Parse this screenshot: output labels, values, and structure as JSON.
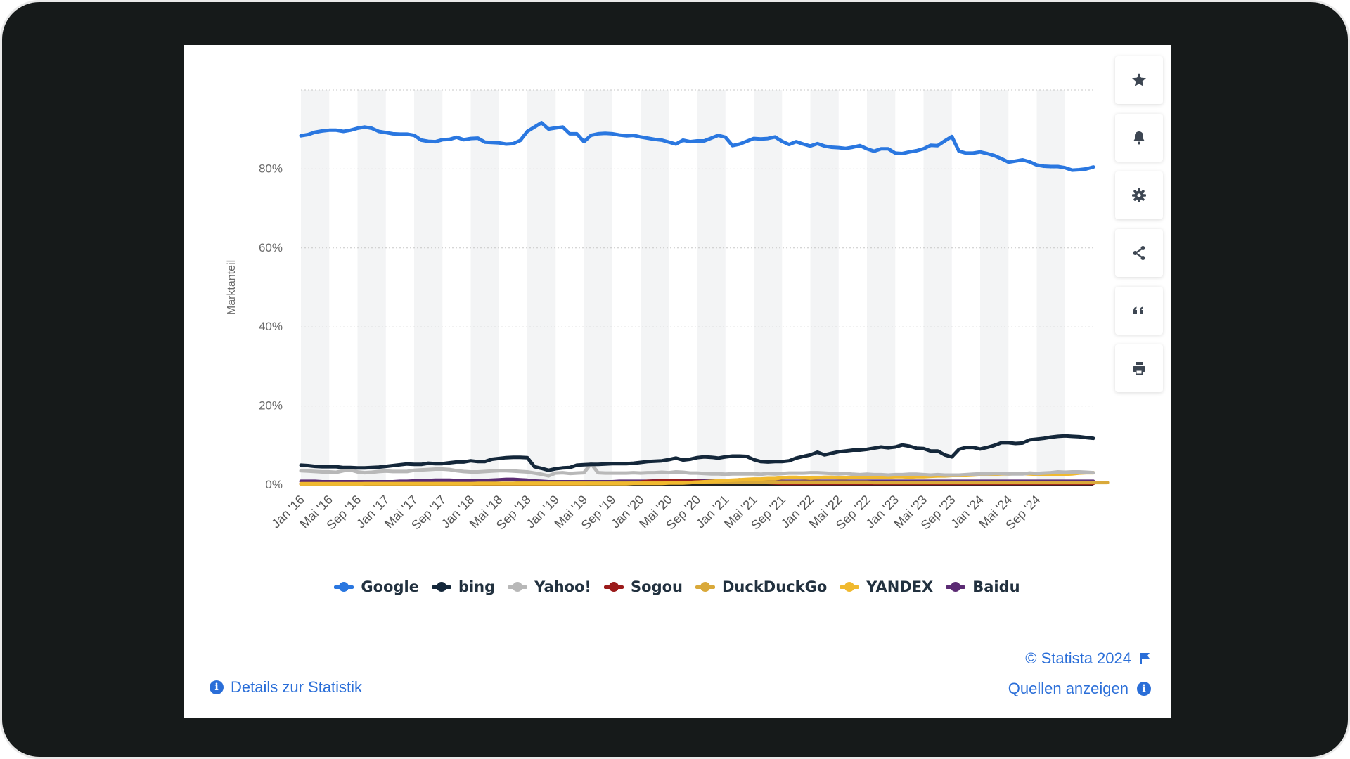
{
  "ui": {
    "details_label": "Details zur Statistik",
    "credit_label": "© Statista 2024",
    "sources_label": "Quellen anzeigen",
    "toolbar": [
      {
        "name": "favorite-button",
        "icon": "star-icon"
      },
      {
        "name": "notification-button",
        "icon": "bell-icon"
      },
      {
        "name": "settings-button",
        "icon": "gear-icon"
      },
      {
        "name": "share-button",
        "icon": "share-icon"
      },
      {
        "name": "cite-button",
        "icon": "quote-icon"
      },
      {
        "name": "print-button",
        "icon": "printer-icon"
      }
    ]
  },
  "chart_data": {
    "type": "line",
    "title": "",
    "xlabel": "",
    "ylabel": "Marktanteil",
    "ylim": [
      0,
      100
    ],
    "y_ticks": [
      0,
      20,
      40,
      60,
      80
    ],
    "y_tick_labels": [
      "0%",
      "20%",
      "40%",
      "60%",
      "80%"
    ],
    "grid": true,
    "x_tick_labels": [
      "Jan '16",
      "Mai '16",
      "Sep '16",
      "Jan '17",
      "Mai '17",
      "Sep '17",
      "Jan '18",
      "Mai '18",
      "Sep '18",
      "Jan '19",
      "Mai '19",
      "Sep '19",
      "Jan '20",
      "Mai '20",
      "Sep '20",
      "Jan '21",
      "Mai '21",
      "Sep '21",
      "Jan '22",
      "Mai '22",
      "Sep '22",
      "Jan '23",
      "Mai '23",
      "Sep '23",
      "Jan '24",
      "Mai '24",
      "Sep '24"
    ],
    "legend_position": "bottom",
    "x_start": "Jan '16",
    "x_end": "Nov '24",
    "series": [
      {
        "name": "Google",
        "color": "#2a77e0",
        "values": [
          88.4,
          88.7,
          89.3,
          89.6,
          89.8,
          89.8,
          89.5,
          89.8,
          90.3,
          90.6,
          90.3,
          89.5,
          89.2,
          88.9,
          88.8,
          88.8,
          88.5,
          87.3,
          87.0,
          86.9,
          87.4,
          87.5,
          88.0,
          87.4,
          87.7,
          87.8,
          86.8,
          86.7,
          86.6,
          86.3,
          86.4,
          87.2,
          89.5,
          90.6,
          91.7,
          90.1,
          90.4,
          90.6,
          88.9,
          88.9,
          86.9,
          88.5,
          88.9,
          89.0,
          88.9,
          88.6,
          88.4,
          88.5,
          88.1,
          87.8,
          87.5,
          87.3,
          86.8,
          86.3,
          87.3,
          86.9,
          87.1,
          87.1,
          87.8,
          88.5,
          88.0,
          85.9,
          86.3,
          87.0,
          87.7,
          87.6,
          87.7,
          88.1,
          87.0,
          86.2,
          86.9,
          86.3,
          85.8,
          86.4,
          85.8,
          85.5,
          85.4,
          85.2,
          85.5,
          85.9,
          85.1,
          84.5,
          85.1,
          85.1,
          84.0,
          83.9,
          84.3,
          84.6,
          85.1,
          86.0,
          85.9,
          87.1,
          88.2,
          84.5,
          84.0,
          84.0,
          84.3,
          83.9,
          83.4,
          82.6,
          81.7,
          82.0,
          82.3,
          81.8,
          81.0,
          80.7,
          80.6,
          80.6,
          80.3,
          79.7,
          79.8,
          80.0,
          80.5
        ]
      },
      {
        "name": "bing",
        "color": "#14273a",
        "values": [
          5.0,
          4.9,
          4.7,
          4.6,
          4.6,
          4.6,
          4.4,
          4.4,
          4.3,
          4.3,
          4.4,
          4.5,
          4.7,
          4.9,
          5.1,
          5.3,
          5.2,
          5.2,
          5.5,
          5.4,
          5.4,
          5.6,
          5.8,
          5.8,
          6.1,
          5.9,
          5.9,
          6.5,
          6.7,
          6.9,
          7.0,
          7.0,
          6.9,
          4.6,
          4.2,
          3.7,
          4.1,
          4.3,
          4.4,
          5.0,
          5.1,
          5.2,
          5.2,
          5.3,
          5.4,
          5.4,
          5.4,
          5.5,
          5.7,
          5.9,
          6.0,
          6.1,
          6.4,
          6.8,
          6.3,
          6.5,
          6.9,
          7.1,
          7.0,
          6.8,
          7.1,
          7.3,
          7.3,
          7.2,
          6.4,
          5.9,
          5.8,
          5.9,
          5.9,
          6.1,
          6.8,
          7.2,
          7.6,
          8.3,
          7.6,
          8.0,
          8.4,
          8.6,
          8.8,
          8.8,
          9.0,
          9.3,
          9.6,
          9.4,
          9.6,
          10.1,
          9.8,
          9.3,
          9.2,
          8.6,
          8.6,
          7.6,
          7.1,
          9.0,
          9.5,
          9.5,
          9.1,
          9.5,
          10.0,
          10.7,
          10.7,
          10.5,
          10.6,
          11.4,
          11.6,
          11.8,
          12.1,
          12.3,
          12.4,
          12.3,
          12.2,
          12.0,
          11.8
        ]
      },
      {
        "name": "Yahoo!",
        "color": "#b8b8b8",
        "values": [
          3.6,
          3.5,
          3.4,
          3.3,
          3.3,
          3.2,
          3.6,
          3.8,
          3.3,
          3.1,
          3.2,
          3.4,
          3.5,
          3.4,
          3.4,
          3.4,
          3.7,
          3.8,
          3.9,
          4.0,
          4.0,
          3.9,
          3.6,
          3.4,
          3.3,
          3.3,
          3.4,
          3.5,
          3.6,
          3.6,
          3.5,
          3.4,
          3.3,
          3.0,
          2.7,
          2.3,
          3.0,
          3.1,
          2.9,
          3.0,
          3.1,
          5.4,
          3.1,
          3.0,
          3.0,
          3.0,
          3.0,
          3.1,
          3.0,
          3.1,
          3.1,
          3.2,
          3.1,
          3.3,
          3.2,
          3.0,
          3.0,
          2.9,
          2.8,
          2.8,
          2.7,
          2.8,
          2.8,
          2.8,
          2.8,
          2.7,
          2.9,
          2.8,
          2.9,
          3.0,
          3.0,
          3.0,
          3.1,
          3.1,
          3.0,
          2.9,
          2.8,
          2.9,
          2.7,
          2.6,
          2.7,
          2.6,
          2.6,
          2.5,
          2.6,
          2.6,
          2.7,
          2.7,
          2.6,
          2.5,
          2.6,
          2.5,
          2.5,
          2.5,
          2.6,
          2.7,
          2.8,
          2.8,
          2.9,
          2.9,
          2.8,
          2.8,
          2.8,
          3.0,
          2.9,
          3.0,
          3.1,
          3.3,
          3.2,
          3.3,
          3.3,
          3.2,
          3.1
        ]
      },
      {
        "name": "Sogou",
        "color": "#9b1b1b",
        "values": [
          0.3,
          0.3,
          0.3,
          0.3,
          0.3,
          0.3,
          0.3,
          0.3,
          0.3,
          0.3,
          0.3,
          0.3,
          0.3,
          0.3,
          0.3,
          0.3,
          0.3,
          0.3,
          0.3,
          0.3,
          0.3,
          0.3,
          0.3,
          0.3,
          0.3,
          0.3,
          0.3,
          0.3,
          0.3,
          0.3,
          0.3,
          0.3,
          0.3,
          0.3,
          0.3,
          0.3,
          0.3,
          0.3,
          0.3,
          0.3,
          0.3,
          0.4,
          0.4,
          0.5,
          0.5,
          0.5,
          0.6,
          0.6,
          0.7,
          0.9,
          0.9,
          1.0,
          1.1,
          1.0,
          0.9,
          0.9,
          0.9,
          0.8,
          0.8,
          0.8,
          0.8,
          1.1,
          1.3,
          1.0,
          0.8,
          0.7,
          0.6,
          0.5,
          0.4,
          0.4,
          0.4,
          0.4,
          0.4,
          0.4,
          0.4,
          0.4,
          0.4,
          0.4,
          0.4,
          0.4,
          0.4,
          0.4,
          0.4,
          0.4,
          0.4,
          0.4,
          0.4,
          0.4,
          0.4,
          0.4,
          0.4,
          0.4,
          0.4,
          0.4,
          0.4,
          0.4,
          0.4,
          0.4,
          0.4,
          0.4,
          0.4,
          0.4,
          0.4,
          0.4,
          0.4,
          0.4,
          0.4,
          0.4,
          0.4,
          0.4,
          0.4,
          0.4,
          0.4
        ]
      },
      {
        "name": "DuckDuckGo",
        "color": "#d9a93a",
        "values": [
          0.2,
          0.2,
          0.2,
          0.2,
          0.2,
          0.2,
          0.2,
          0.2,
          0.2,
          0.3,
          0.3,
          0.3,
          0.3,
          0.3,
          0.3,
          0.3,
          0.3,
          0.3,
          0.3,
          0.3,
          0.3,
          0.3,
          0.3,
          0.3,
          0.3,
          0.4,
          0.4,
          0.4,
          0.4,
          0.4,
          0.4,
          0.5,
          0.5,
          0.5,
          0.5,
          0.5,
          0.5,
          0.5,
          0.5,
          0.5,
          0.5,
          0.5,
          0.5,
          0.5,
          0.5,
          0.6,
          0.6,
          0.6,
          0.6,
          0.6,
          0.6,
          0.6,
          0.6,
          0.6,
          0.6,
          0.6,
          0.7,
          0.7,
          0.7,
          0.7,
          0.7,
          0.7,
          0.7,
          0.7,
          0.7,
          0.7,
          0.7,
          0.7,
          0.7,
          0.7,
          0.7,
          0.7,
          0.7,
          0.7,
          0.7,
          0.7,
          0.7,
          0.7,
          0.7,
          0.7,
          0.7,
          0.6,
          0.6,
          0.6,
          0.6,
          0.6,
          0.6,
          0.6,
          0.6,
          0.6,
          0.6,
          0.6,
          0.6,
          0.6,
          0.6,
          0.6,
          0.6,
          0.6,
          0.6,
          0.6,
          0.6,
          0.6,
          0.6,
          0.6,
          0.6,
          0.6,
          0.6,
          0.6,
          0.6,
          0.6,
          0.6,
          0.6,
          0.6,
          0.6,
          0.6
        ]
      },
      {
        "name": "YANDEX",
        "color": "#f0b92f",
        "values": [
          0.3,
          0.3,
          0.3,
          0.3,
          0.3,
          0.3,
          0.3,
          0.3,
          0.3,
          0.3,
          0.3,
          0.3,
          0.3,
          0.3,
          0.3,
          0.3,
          0.3,
          0.3,
          0.3,
          0.3,
          0.3,
          0.3,
          0.3,
          0.3,
          0.3,
          0.3,
          0.3,
          0.3,
          0.3,
          0.3,
          0.3,
          0.3,
          0.3,
          0.3,
          0.3,
          0.3,
          0.3,
          0.3,
          0.3,
          0.3,
          0.3,
          0.3,
          0.3,
          0.3,
          0.3,
          0.3,
          0.3,
          0.4,
          0.4,
          0.4,
          0.4,
          0.4,
          0.5,
          0.5,
          0.5,
          0.6,
          0.7,
          0.8,
          0.9,
          1.0,
          1.1,
          1.2,
          1.3,
          1.4,
          1.5,
          1.5,
          1.6,
          1.6,
          1.8,
          1.9,
          1.9,
          1.8,
          1.7,
          1.8,
          1.9,
          1.9,
          1.8,
          1.8,
          1.9,
          2.0,
          2.0,
          2.0,
          1.9,
          2.0,
          2.1,
          2.1,
          2.0,
          2.1,
          2.1,
          2.2,
          2.3,
          2.3,
          2.4,
          2.4,
          2.4,
          2.5,
          2.6,
          2.7,
          2.7,
          2.8,
          2.8,
          2.9,
          2.9,
          2.8,
          2.7,
          2.6,
          2.6,
          2.6,
          2.7,
          2.8,
          3.0,
          3.1,
          3.1
        ]
      },
      {
        "name": "Baidu",
        "color": "#5b2b73",
        "values": [
          0.9,
          0.9,
          0.9,
          0.8,
          0.8,
          0.8,
          0.8,
          0.8,
          0.8,
          0.8,
          0.8,
          0.8,
          0.8,
          0.8,
          0.9,
          0.9,
          1.0,
          1.0,
          1.1,
          1.2,
          1.2,
          1.2,
          1.1,
          1.1,
          1.0,
          1.0,
          1.1,
          1.2,
          1.3,
          1.4,
          1.4,
          1.3,
          1.2,
          1.0,
          0.9,
          0.8,
          0.8,
          0.8,
          0.8,
          0.8,
          0.8,
          0.8,
          0.8,
          0.8,
          0.8,
          0.9,
          0.9,
          0.9,
          0.9,
          0.9,
          1.0,
          1.0,
          1.1,
          1.1,
          1.1,
          1.0,
          1.0,
          1.0,
          1.0,
          0.9,
          0.9,
          0.9,
          0.9,
          0.9,
          0.9,
          0.9,
          0.9,
          0.9,
          0.9,
          0.9,
          0.9,
          0.9,
          0.9,
          0.9,
          0.9,
          0.9,
          0.9,
          0.9,
          0.9,
          0.9,
          0.9,
          0.9,
          0.9,
          0.9,
          0.9,
          0.9,
          0.9,
          0.9,
          0.9,
          0.9,
          0.9,
          0.9,
          0.9,
          0.9,
          0.9,
          0.9,
          0.9,
          0.9,
          0.9,
          0.9,
          0.9,
          0.9,
          0.9,
          0.9,
          0.9,
          0.9,
          0.9,
          0.9,
          0.9,
          0.9,
          0.9,
          0.9,
          0.9
        ]
      }
    ]
  }
}
